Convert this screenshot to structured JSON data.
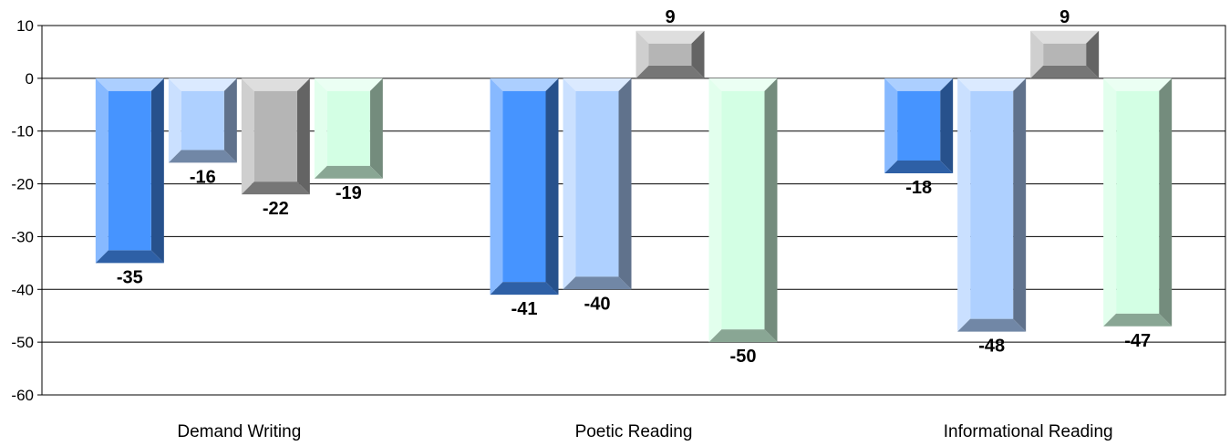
{
  "chart_data": {
    "type": "bar",
    "categories": [
      "Demand Writing",
      "Poetic Reading",
      "Informational Reading"
    ],
    "series": [
      {
        "values": [
          -35,
          -41,
          -18
        ],
        "color": "#4694FF"
      },
      {
        "values": [
          -16,
          -40,
          -48
        ],
        "color": "#AED0FF"
      },
      {
        "values": [
          -22,
          9,
          9
        ],
        "color": "#B5B5B5"
      },
      {
        "values": [
          -19,
          -50,
          -47
        ],
        "color": "#D3FFE4"
      }
    ],
    "ylim": [
      -60,
      10
    ],
    "yticks": [
      10,
      0,
      -10,
      -20,
      -30,
      -40,
      -50,
      -60
    ],
    "grid": true,
    "style": "3d-beveled-bars"
  }
}
